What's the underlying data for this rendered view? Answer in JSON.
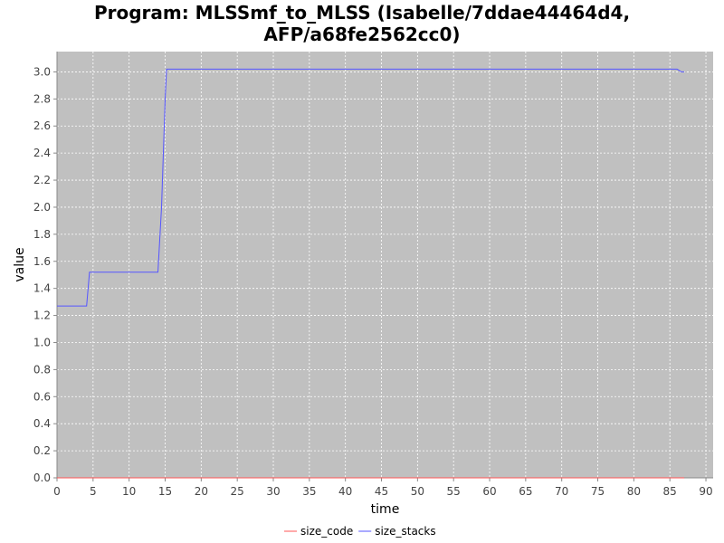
{
  "chart_data": {
    "type": "line",
    "title_lines": [
      "Program: MLSSmf_to_MLSS (Isabelle/7ddae44464d4,",
      "AFP/a68fe2562cc0)"
    ],
    "xlabel": "time",
    "ylabel": "value",
    "xlim": [
      0,
      91
    ],
    "ylim": [
      0,
      3.15
    ],
    "xticks": [
      0,
      5,
      10,
      15,
      20,
      25,
      30,
      35,
      40,
      45,
      50,
      55,
      60,
      65,
      70,
      75,
      80,
      85,
      90
    ],
    "yticks": [
      0.0,
      0.2,
      0.4,
      0.6,
      0.8,
      1.0,
      1.2,
      1.4,
      1.6,
      1.8,
      2.0,
      2.2,
      2.4,
      2.6,
      2.8,
      3.0
    ],
    "grid": true,
    "legend_position": "bottom",
    "plot_background": "#c0c0c0",
    "series": [
      {
        "name": "size_code",
        "color": "#ff5555",
        "x": [
          0,
          87
        ],
        "y": [
          0.0,
          0.0
        ]
      },
      {
        "name": "size_stacks",
        "color": "#5555ff",
        "x": [
          0,
          4.1,
          4.5,
          14.0,
          14.5,
          15.0,
          15.2,
          86.0,
          86.6,
          87.0
        ],
        "y": [
          1.27,
          1.27,
          1.52,
          1.52,
          2.0,
          2.8,
          3.02,
          3.02,
          3.0,
          3.0
        ]
      }
    ]
  }
}
